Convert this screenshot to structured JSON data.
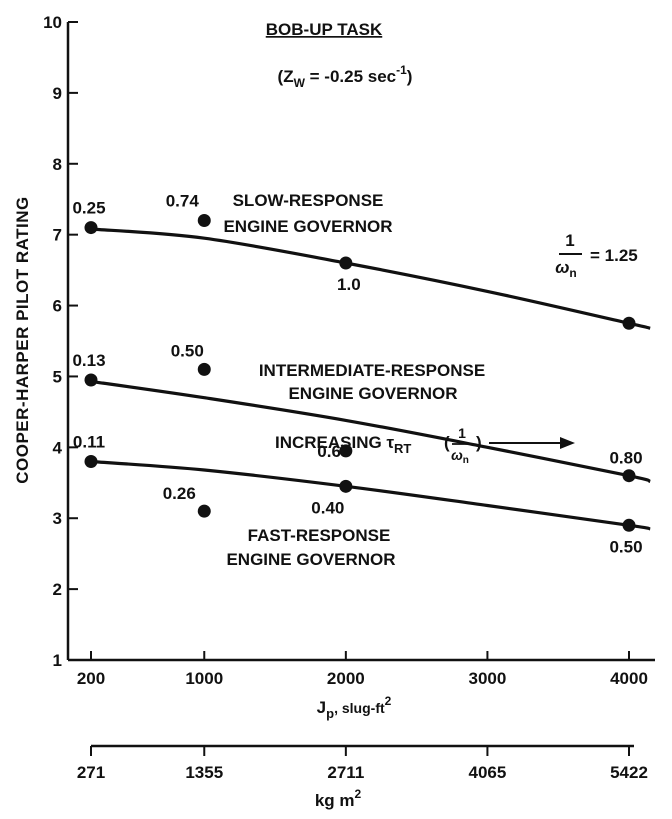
{
  "chart_data": {
    "type": "scatter",
    "title": "BOB-UP TASK",
    "subtitle_main": "(Z",
    "subtitle_sub": "W",
    "subtitle_tail": " = -0.25 sec",
    "subtitle_exp": "-1",
    "subtitle_close": ")",
    "ylabel": "COOPER-HARPER PILOT RATING",
    "xlabel_main": "J",
    "xlabel_sub": "p",
    "xlabel_tail": ", slug-ft",
    "xlabel_exp": "2",
    "xlabel2_main": "kg m",
    "xlabel2_exp": "2",
    "xlim": [
      100,
      4100
    ],
    "ylim": [
      1,
      10
    ],
    "x_ticks": [
      200,
      1000,
      2000,
      3000,
      4000
    ],
    "x_tick_labels": [
      "200",
      "1000",
      "2000",
      "3000",
      "4000"
    ],
    "y_ticks": [
      1,
      2,
      3,
      4,
      5,
      6,
      7,
      8,
      9,
      10
    ],
    "y_tick_labels": [
      "1",
      "2",
      "3",
      "4",
      "5",
      "6",
      "7",
      "8",
      "9",
      "10"
    ],
    "x2_ticks": [
      200,
      1000,
      2000,
      3000,
      4000
    ],
    "x2_tick_labels": [
      "271",
      "1355",
      "2711",
      "4065",
      "5422"
    ],
    "series": [
      {
        "label_lines": [
          "SLOW-RESPONSE",
          "ENGINE GOVERNOR"
        ],
        "points": [
          {
            "x": 200,
            "y": 7.1,
            "label": "0.25"
          },
          {
            "x": 1000,
            "y": 7.2,
            "label": "0.74"
          },
          {
            "x": 2000,
            "y": 6.6,
            "label": "1.0"
          },
          {
            "x": 4000,
            "y": 5.75,
            "label": ""
          }
        ],
        "curve": [
          [
            200,
            7.08
          ],
          [
            1000,
            6.95
          ],
          [
            2000,
            6.6
          ],
          [
            3000,
            6.2
          ],
          [
            4000,
            5.75
          ],
          [
            4150,
            5.68
          ]
        ]
      },
      {
        "label_lines": [
          "INTERMEDIATE-RESPONSE",
          "ENGINE GOVERNOR"
        ],
        "points": [
          {
            "x": 200,
            "y": 4.95,
            "label": "0.13"
          },
          {
            "x": 1000,
            "y": 5.1,
            "label": "0.50"
          },
          {
            "x": 2000,
            "y": 3.95,
            "label": "0.67"
          },
          {
            "x": 4000,
            "y": 3.6,
            "label": "0.80"
          }
        ],
        "curve": [
          [
            200,
            4.93
          ],
          [
            1000,
            4.7
          ],
          [
            2000,
            4.38
          ],
          [
            3000,
            4.0
          ],
          [
            4000,
            3.6
          ],
          [
            4150,
            3.52
          ]
        ]
      },
      {
        "label_lines": [
          "FAST-RESPONSE",
          "ENGINE GOVERNOR"
        ],
        "points": [
          {
            "x": 200,
            "y": 3.8,
            "label": "0.11"
          },
          {
            "x": 1000,
            "y": 3.1,
            "label": "0.26"
          },
          {
            "x": 2000,
            "y": 3.45,
            "label": "0.40"
          },
          {
            "x": 4000,
            "y": 2.9,
            "label": "0.50"
          }
        ],
        "curve": [
          [
            200,
            3.8
          ],
          [
            1000,
            3.68
          ],
          [
            2000,
            3.45
          ],
          [
            3000,
            3.18
          ],
          [
            4000,
            2.9
          ],
          [
            4150,
            2.85
          ]
        ]
      }
    ],
    "annotation_omega": {
      "num": "1",
      "den": "ω",
      "den_sub": "n",
      "value": "= 1.25"
    },
    "annotation_increasing": {
      "text": "INCREASING τ",
      "sub": "RT",
      "paren_open": "(",
      "num": "1",
      "den": "ω",
      "den_sub": "n",
      "paren_close": ")"
    }
  }
}
